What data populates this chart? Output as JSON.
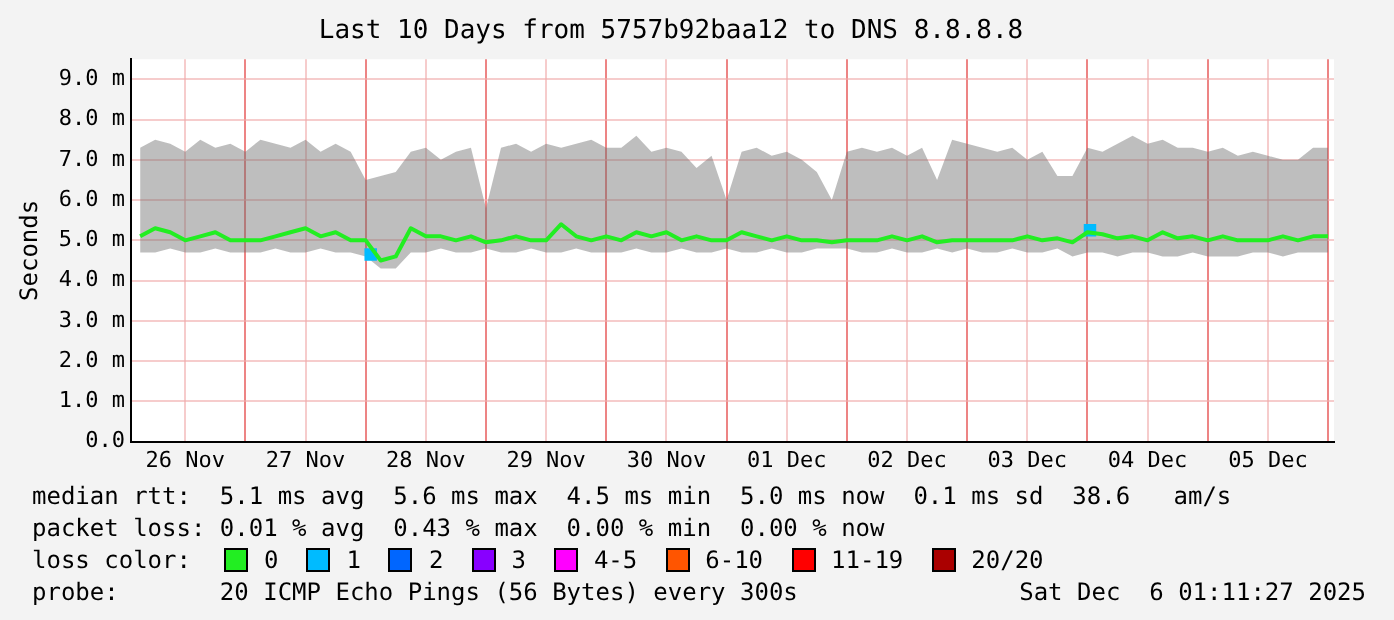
{
  "chart_data": {
    "type": "line",
    "title": "Last 10 Days from 5757b92baa12 to DNS 8.8.8.8",
    "ylabel": "Seconds",
    "legend_title": "loss color:",
    "x": [
      "2025-11-26T03:00",
      "2025-11-26T06:00",
      "2025-11-26T09:00",
      "2025-11-26T12:00",
      "2025-11-26T15:00",
      "2025-11-26T18:00",
      "2025-11-26T21:00",
      "2025-11-27T00:00",
      "2025-11-27T03:00",
      "2025-11-27T06:00",
      "2025-11-27T09:00",
      "2025-11-27T12:00",
      "2025-11-27T15:00",
      "2025-11-27T18:00",
      "2025-11-27T21:00",
      "2025-11-28T00:00",
      "2025-11-28T03:00",
      "2025-11-28T06:00",
      "2025-11-28T09:00",
      "2025-11-28T12:00",
      "2025-11-28T15:00",
      "2025-11-28T18:00",
      "2025-11-28T21:00",
      "2025-11-29T00:00",
      "2025-11-29T03:00",
      "2025-11-29T06:00",
      "2025-11-29T09:00",
      "2025-11-29T12:00",
      "2025-11-29T15:00",
      "2025-11-29T18:00",
      "2025-11-29T21:00",
      "2025-11-30T00:00",
      "2025-11-30T03:00",
      "2025-11-30T06:00",
      "2025-11-30T09:00",
      "2025-11-30T12:00",
      "2025-11-30T15:00",
      "2025-11-30T18:00",
      "2025-11-30T21:00",
      "2025-12-01T00:00",
      "2025-12-01T03:00",
      "2025-12-01T06:00",
      "2025-12-01T09:00",
      "2025-12-01T12:00",
      "2025-12-01T15:00",
      "2025-12-01T18:00",
      "2025-12-01T21:00",
      "2025-12-02T00:00",
      "2025-12-02T03:00",
      "2025-12-02T06:00",
      "2025-12-02T09:00",
      "2025-12-02T12:00",
      "2025-12-02T15:00",
      "2025-12-02T18:00",
      "2025-12-02T21:00",
      "2025-12-03T00:00",
      "2025-12-03T03:00",
      "2025-12-03T06:00",
      "2025-12-03T09:00",
      "2025-12-03T12:00",
      "2025-12-03T15:00",
      "2025-12-03T18:00",
      "2025-12-03T21:00",
      "2025-12-04T00:00",
      "2025-12-04T03:00",
      "2025-12-04T06:00",
      "2025-12-04T09:00",
      "2025-12-04T12:00",
      "2025-12-04T15:00",
      "2025-12-04T18:00",
      "2025-12-04T21:00",
      "2025-12-05T00:00",
      "2025-12-05T03:00",
      "2025-12-05T06:00",
      "2025-12-05T09:00",
      "2025-12-05T12:00",
      "2025-12-05T15:00",
      "2025-12-05T18:00",
      "2025-12-05T21:00",
      "2025-12-06T00:00"
    ],
    "series": [
      {
        "name": "0",
        "color": "#22ee22",
        "values": [
          5.1,
          5.3,
          5.2,
          5.0,
          5.1,
          5.2,
          5.0,
          5.0,
          5.0,
          5.1,
          5.2,
          5.3,
          5.1,
          5.2,
          5.0,
          5.0,
          4.5,
          4.6,
          5.3,
          5.1,
          5.1,
          5.0,
          5.1,
          4.95,
          5.0,
          5.1,
          5.0,
          5.0,
          5.4,
          5.1,
          5.0,
          5.1,
          5.0,
          5.2,
          5.1,
          5.2,
          5.0,
          5.1,
          5.0,
          5.0,
          5.2,
          5.1,
          5.0,
          5.1,
          5.0,
          5.0,
          4.95,
          5.0,
          5.0,
          5.0,
          5.1,
          5.0,
          5.1,
          4.95,
          5.0,
          5.0,
          5.0,
          5.0,
          5.0,
          5.1,
          5.0,
          5.05,
          4.95,
          5.2,
          5.15,
          5.05,
          5.1,
          5.0,
          5.2,
          5.05,
          5.1,
          5.0,
          5.1,
          5.0,
          5.0,
          5.0,
          5.1,
          5.0,
          5.1,
          5.1
        ],
        "lower": [
          4.7,
          4.7,
          4.8,
          4.7,
          4.7,
          4.8,
          4.7,
          4.7,
          4.7,
          4.8,
          4.7,
          4.7,
          4.8,
          4.7,
          4.7,
          4.6,
          4.3,
          4.3,
          4.7,
          4.7,
          4.8,
          4.7,
          4.7,
          4.8,
          4.7,
          4.7,
          4.8,
          4.7,
          4.7,
          4.8,
          4.7,
          4.7,
          4.7,
          4.8,
          4.7,
          4.7,
          4.8,
          4.7,
          4.7,
          4.8,
          4.7,
          4.7,
          4.8,
          4.7,
          4.7,
          4.8,
          4.8,
          4.8,
          4.7,
          4.7,
          4.8,
          4.7,
          4.7,
          4.8,
          4.7,
          4.8,
          4.7,
          4.7,
          4.8,
          4.7,
          4.7,
          4.8,
          4.6,
          4.7,
          4.7,
          4.6,
          4.7,
          4.7,
          4.6,
          4.6,
          4.7,
          4.6,
          4.6,
          4.6,
          4.7,
          4.7,
          4.6,
          4.7,
          4.7,
          4.7
        ],
        "upper": [
          7.3,
          7.5,
          7.4,
          7.2,
          7.5,
          7.3,
          7.4,
          7.2,
          7.5,
          7.4,
          7.3,
          7.5,
          7.2,
          7.4,
          7.2,
          6.5,
          6.6,
          6.7,
          7.2,
          7.3,
          7.0,
          7.2,
          7.3,
          5.8,
          7.3,
          7.4,
          7.2,
          7.4,
          7.3,
          7.4,
          7.5,
          7.3,
          7.3,
          7.6,
          7.2,
          7.3,
          7.2,
          6.8,
          7.1,
          6.0,
          7.2,
          7.3,
          7.1,
          7.2,
          7.0,
          6.7,
          6.0,
          7.2,
          7.3,
          7.2,
          7.3,
          7.1,
          7.3,
          6.5,
          7.5,
          7.4,
          7.3,
          7.2,
          7.3,
          7.0,
          7.2,
          6.6,
          6.6,
          7.3,
          7.2,
          7.4,
          7.6,
          7.4,
          7.5,
          7.3,
          7.3,
          7.2,
          7.3,
          7.1,
          7.2,
          7.1,
          7.0,
          7.0,
          7.3,
          7.3
        ]
      },
      {
        "name": "1",
        "type": "scatter",
        "color": "#00bbff",
        "x": [
          "2025-11-28T01:00",
          "2025-12-04T00:30"
        ],
        "values": [
          4.65,
          5.25
        ]
      },
      {
        "name": "2",
        "color": "#0066ff",
        "values": [
          null,
          null,
          null,
          null,
          null,
          null,
          null,
          null,
          null,
          null,
          null,
          null,
          null,
          null,
          null,
          null,
          null,
          null,
          null,
          null,
          null,
          null,
          null,
          null,
          null,
          null,
          null,
          null,
          null,
          null,
          null,
          null,
          null,
          null,
          null,
          null,
          null,
          null,
          null,
          null,
          null,
          null,
          null,
          null,
          null,
          null,
          null,
          null,
          null,
          null,
          null,
          null,
          null,
          null,
          null,
          null,
          null,
          null,
          null,
          null,
          null,
          null,
          null,
          null,
          null,
          null,
          null,
          null,
          null,
          null,
          null,
          null,
          null,
          null,
          null,
          null,
          null,
          null,
          null,
          null
        ]
      },
      {
        "name": "3",
        "color": "#8800ff",
        "values": [
          null,
          null,
          null,
          null,
          null,
          null,
          null,
          null,
          null,
          null,
          null,
          null,
          null,
          null,
          null,
          null,
          null,
          null,
          null,
          null,
          null,
          null,
          null,
          null,
          null,
          null,
          null,
          null,
          null,
          null,
          null,
          null,
          null,
          null,
          null,
          null,
          null,
          null,
          null,
          null,
          null,
          null,
          null,
          null,
          null,
          null,
          null,
          null,
          null,
          null,
          null,
          null,
          null,
          null,
          null,
          null,
          null,
          null,
          null,
          null,
          null,
          null,
          null,
          null,
          null,
          null,
          null,
          null,
          null,
          null,
          null,
          null,
          null,
          null,
          null,
          null,
          null,
          null,
          null,
          null
        ]
      },
      {
        "name": "4-5",
        "color": "#ff00ff",
        "values": [
          null,
          null,
          null,
          null,
          null,
          null,
          null,
          null,
          null,
          null,
          null,
          null,
          null,
          null,
          null,
          null,
          null,
          null,
          null,
          null,
          null,
          null,
          null,
          null,
          null,
          null,
          null,
          null,
          null,
          null,
          null,
          null,
          null,
          null,
          null,
          null,
          null,
          null,
          null,
          null,
          null,
          null,
          null,
          null,
          null,
          null,
          null,
          null,
          null,
          null,
          null,
          null,
          null,
          null,
          null,
          null,
          null,
          null,
          null,
          null,
          null,
          null,
          null,
          null,
          null,
          null,
          null,
          null,
          null,
          null,
          null,
          null,
          null,
          null,
          null,
          null,
          null,
          null,
          null,
          null
        ]
      },
      {
        "name": "6-10",
        "color": "#ff5500",
        "values": [
          null,
          null,
          null,
          null,
          null,
          null,
          null,
          null,
          null,
          null,
          null,
          null,
          null,
          null,
          null,
          null,
          null,
          null,
          null,
          null,
          null,
          null,
          null,
          null,
          null,
          null,
          null,
          null,
          null,
          null,
          null,
          null,
          null,
          null,
          null,
          null,
          null,
          null,
          null,
          null,
          null,
          null,
          null,
          null,
          null,
          null,
          null,
          null,
          null,
          null,
          null,
          null,
          null,
          null,
          null,
          null,
          null,
          null,
          null,
          null,
          null,
          null,
          null,
          null,
          null,
          null,
          null,
          null,
          null,
          null,
          null,
          null,
          null,
          null,
          null,
          null,
          null,
          null,
          null,
          null
        ]
      },
      {
        "name": "11-19",
        "color": "#ff0000",
        "values": [
          null,
          null,
          null,
          null,
          null,
          null,
          null,
          null,
          null,
          null,
          null,
          null,
          null,
          null,
          null,
          null,
          null,
          null,
          null,
          null,
          null,
          null,
          null,
          null,
          null,
          null,
          null,
          null,
          null,
          null,
          null,
          null,
          null,
          null,
          null,
          null,
          null,
          null,
          null,
          null,
          null,
          null,
          null,
          null,
          null,
          null,
          null,
          null,
          null,
          null,
          null,
          null,
          null,
          null,
          null,
          null,
          null,
          null,
          null,
          null,
          null,
          null,
          null,
          null,
          null,
          null,
          null,
          null,
          null,
          null,
          null,
          null,
          null,
          null,
          null,
          null,
          null,
          null,
          null,
          null
        ]
      },
      {
        "name": "20/20",
        "color": "#aa0000",
        "values": [
          null,
          null,
          null,
          null,
          null,
          null,
          null,
          null,
          null,
          null,
          null,
          null,
          null,
          null,
          null,
          null,
          null,
          null,
          null,
          null,
          null,
          null,
          null,
          null,
          null,
          null,
          null,
          null,
          null,
          null,
          null,
          null,
          null,
          null,
          null,
          null,
          null,
          null,
          null,
          null,
          null,
          null,
          null,
          null,
          null,
          null,
          null,
          null,
          null,
          null,
          null,
          null,
          null,
          null,
          null,
          null,
          null,
          null,
          null,
          null,
          null,
          null,
          null,
          null,
          null,
          null,
          null,
          null,
          null,
          null,
          null,
          null,
          null,
          null,
          null,
          null,
          null,
          null,
          null,
          null
        ]
      }
    ],
    "xlim": [
      "2025-11-26T01:11",
      "2025-12-06T01:11"
    ],
    "xticks": [
      {
        "value": "2025-11-26T12:00",
        "label": "26 Nov"
      },
      {
        "value": "2025-11-27T00:00",
        "label": null
      },
      {
        "value": "2025-11-27T12:00",
        "label": "27 Nov"
      },
      {
        "value": "2025-11-28T00:00",
        "label": null
      },
      {
        "value": "2025-11-28T12:00",
        "label": "28 Nov"
      },
      {
        "value": "2025-11-29T00:00",
        "label": null
      },
      {
        "value": "2025-11-29T12:00",
        "label": "29 Nov"
      },
      {
        "value": "2025-11-30T00:00",
        "label": null
      },
      {
        "value": "2025-11-30T12:00",
        "label": "30 Nov"
      },
      {
        "value": "2025-12-01T00:00",
        "label": null
      },
      {
        "value": "2025-12-01T12:00",
        "label": "01 Dec"
      },
      {
        "value": "2025-12-02T00:00",
        "label": null
      },
      {
        "value": "2025-12-02T12:00",
        "label": "02 Dec"
      },
      {
        "value": "2025-12-03T00:00",
        "label": null
      },
      {
        "value": "2025-12-03T12:00",
        "label": "03 Dec"
      },
      {
        "value": "2025-12-04T00:00",
        "label": null
      },
      {
        "value": "2025-12-04T12:00",
        "label": "04 Dec"
      },
      {
        "value": "2025-12-05T00:00",
        "label": null
      },
      {
        "value": "2025-12-05T12:00",
        "label": "05 Dec"
      },
      {
        "value": "2025-12-06T00:00",
        "label": null
      }
    ],
    "ylim": [
      0,
      9.5
    ],
    "yticks": [
      {
        "value": 0,
        "label": "0.0"
      },
      {
        "value": 1,
        "label": "1.0 m"
      },
      {
        "value": 2,
        "label": "2.0 m"
      },
      {
        "value": 3,
        "label": "3.0 m"
      },
      {
        "value": 4,
        "label": "4.0 m"
      },
      {
        "value": 5,
        "label": "5.0 m"
      },
      {
        "value": 6,
        "label": "6.0 m"
      },
      {
        "value": 7,
        "label": "7.0 m"
      },
      {
        "value": 8,
        "label": "8.0 m"
      },
      {
        "value": 9,
        "label": "9.0 m"
      }
    ],
    "grid": true,
    "legend": "bottom",
    "line_style": "solid",
    "annotations": [
      "median rtt:  5.1 ms avg  5.6 ms max  4.5 ms min  5.0 ms now  0.1 ms sd  38.6   am/s",
      "packet loss: 0.01 % avg  0.43 % max  0.00 % min  0.00 % now",
      "probe:       20 ICMP Echo Pings (56 Bytes) every 300s",
      "Sat Dec  6 01:11:27 2025"
    ]
  }
}
